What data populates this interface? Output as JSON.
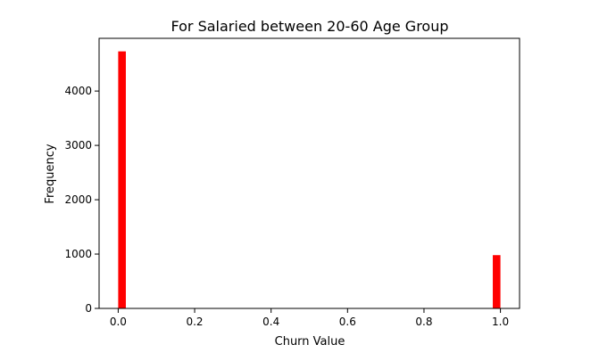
{
  "chart_data": {
    "type": "bar",
    "title": "For Salaried between 20-60 Age Group",
    "xlabel": "Churn Value",
    "ylabel": "Frequency",
    "xlim": [
      -0.05,
      1.05
    ],
    "ylim": [
      0,
      4970
    ],
    "x_ticks": [
      0.0,
      0.2,
      0.4,
      0.6,
      0.8,
      1.0
    ],
    "x_tick_labels": [
      "0.0",
      "0.2",
      "0.4",
      "0.6",
      "0.8",
      "1.0"
    ],
    "y_ticks": [
      0,
      1000,
      2000,
      3000,
      4000
    ],
    "y_tick_labels": [
      "0",
      "1000",
      "2000",
      "3000",
      "4000"
    ],
    "bins": [
      {
        "x_start": 0.0,
        "x_end": 0.02,
        "value": 4730
      },
      {
        "x_start": 0.98,
        "x_end": 1.0,
        "value": 980
      }
    ],
    "color": "#ff0000",
    "grid": false,
    "legend": false
  }
}
